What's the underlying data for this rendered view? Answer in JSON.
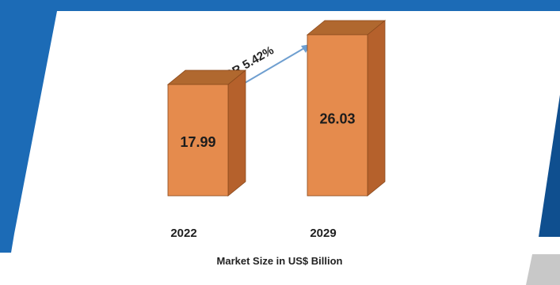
{
  "colors": {
    "frame_blue": "#1c6bb6",
    "frame_blue_dark": "#0f4f8f",
    "bar_front": "#e58b4d",
    "bar_side": "#b5612c",
    "bar_top": "#b0682f",
    "bar_edge": "#8a4a1d",
    "arrow": "#6f9fd0",
    "corner_gray": "#c8c8c8"
  },
  "annotation": {
    "cagr_label": "CAGR 5.42%"
  },
  "chart_data": {
    "type": "bar",
    "categories": [
      "2022",
      "2029"
    ],
    "values": [
      17.99,
      26.03
    ],
    "value_labels": [
      "17.99",
      "26.03"
    ],
    "title": "",
    "xlabel": "Market Size in US$ Billion",
    "ylabel": "",
    "style": "3d",
    "grid": false,
    "legend": "none"
  }
}
